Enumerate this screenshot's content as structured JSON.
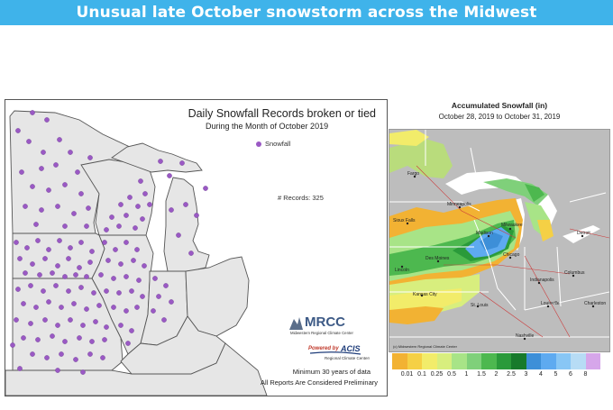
{
  "banner": {
    "title": "Unusual late October snowstorm across the Midwest",
    "color": "#3fb3ea"
  },
  "left_map": {
    "title": "Daily Snowfall Records broken or tied",
    "subtitle": "During the Month of October 2019",
    "legend_label": "Snowfall",
    "marker_color": "#9a59c4",
    "records_label": "# Records: 325",
    "footnote_min": "Minimum 30 years of data",
    "footnote_prelim": "All Reports Are Considered Preliminary",
    "mrcc_logo": {
      "name": "MRCC",
      "caption": "Midwestern Regional Climate Center"
    },
    "acis_logo": {
      "powered_by": "Powered by",
      "name": "ACIS",
      "caption": "Regional Climate Centers"
    }
  },
  "right_map": {
    "title": "Accumulated Snowfall (in)",
    "dates": "October 28, 2019 to October 31, 2019",
    "copyright": "(c) Midwestern Regional Climate Center",
    "cities": [
      "Fargo",
      "Minneapolis",
      "Sioux Falls",
      "Madison",
      "Milwaukee",
      "Detroit",
      "Des Moines",
      "Chicago",
      "Lincoln",
      "Indianapolis",
      "Columbus",
      "Kansas City",
      "St. Louis",
      "Louisville",
      "Charleston",
      "Nashville"
    ],
    "scale": {
      "labels": [
        "0.01",
        "0.1",
        "0.25",
        "0.5",
        "1",
        "1.5",
        "2",
        "2.5",
        "3",
        "4",
        "5",
        "6",
        "8"
      ],
      "colors": [
        "#f2b233",
        "#f5d045",
        "#f2ec6a",
        "#d8ee7e",
        "#a8e487",
        "#7fd07a",
        "#4db84f",
        "#2a9a3a",
        "#177a2b",
        "#3d8fd8",
        "#5eaaf0",
        "#88c6f5",
        "#b7dcf5",
        "#d6a6ea"
      ]
    }
  }
}
